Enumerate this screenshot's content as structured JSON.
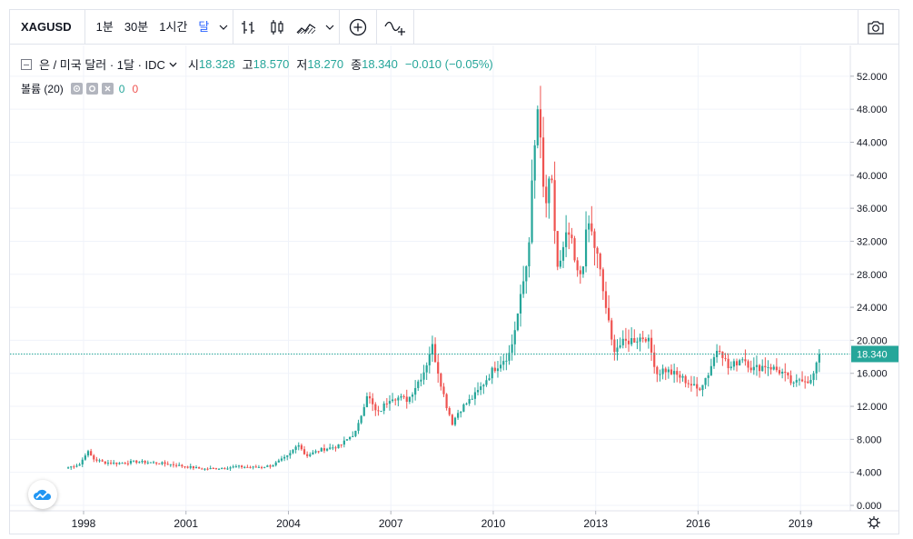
{
  "toolbar": {
    "symbol": "XAGUSD",
    "intervals": [
      {
        "label": "1분",
        "active": false
      },
      {
        "label": "30분",
        "active": false
      },
      {
        "label": "1시간",
        "active": false
      },
      {
        "label": "달",
        "active": true
      }
    ],
    "icons": [
      "chevron-down-icon",
      "bar-style-icon",
      "candle-style-icon",
      "area-style-icon",
      "chevron-down-icon",
      "plus-circle-icon",
      "compare-icon",
      "camera-icon"
    ]
  },
  "legend": {
    "title": "은 / 미국 달러 · 1달 · IDC",
    "open_label": "시",
    "open": "18.328",
    "high_label": "고",
    "high": "18.570",
    "low_label": "저",
    "low": "18.270",
    "close_label": "종",
    "close": "18.340",
    "change": "−0.010 (−0.05%)"
  },
  "volume": {
    "label": "볼륨 (20)",
    "v1": "0",
    "v2": "0"
  },
  "colors": {
    "up": "#26a69a",
    "down": "#ef5350",
    "grid": "#f0f3fa",
    "price_line": "#26a69a"
  },
  "chart_data": {
    "type": "candlestick",
    "symbol": "XAGUSD",
    "interval": "1 month",
    "x_ticks": [
      "1998",
      "2001",
      "2004",
      "2007",
      "2010",
      "2013",
      "2016",
      "2019"
    ],
    "y_ticks": [
      "52.000",
      "48.000",
      "44.000",
      "40.000",
      "36.000",
      "32.000",
      "28.000",
      "24.000",
      "20.000",
      "16.000",
      "12.000",
      "8.000",
      "4.000",
      "0.000"
    ],
    "ylim": [
      0,
      54
    ],
    "last_price": "18.340",
    "grid": true,
    "anchors": [
      [
        1997.55,
        4.6
      ],
      [
        1997.9,
        5.0
      ],
      [
        1998.1,
        6.6
      ],
      [
        1998.3,
        5.6
      ],
      [
        1998.6,
        5.2
      ],
      [
        1999.0,
        5.1
      ],
      [
        1999.5,
        5.3
      ],
      [
        2000.0,
        5.2
      ],
      [
        2000.5,
        5.0
      ],
      [
        2001.0,
        4.7
      ],
      [
        2001.5,
        4.4
      ],
      [
        2002.0,
        4.5
      ],
      [
        2002.5,
        4.7
      ],
      [
        2003.0,
        4.6
      ],
      [
        2003.5,
        4.8
      ],
      [
        2004.0,
        6.0
      ],
      [
        2004.3,
        7.5
      ],
      [
        2004.5,
        6.0
      ],
      [
        2005.0,
        6.8
      ],
      [
        2005.5,
        7.2
      ],
      [
        2006.0,
        9.0
      ],
      [
        2006.3,
        13.5
      ],
      [
        2006.6,
        11.0
      ],
      [
        2007.0,
        13.2
      ],
      [
        2007.5,
        12.8
      ],
      [
        2008.0,
        16.5
      ],
      [
        2008.2,
        19.5
      ],
      [
        2008.6,
        12.5
      ],
      [
        2008.8,
        10.0
      ],
      [
        2009.0,
        11.5
      ],
      [
        2009.5,
        13.5
      ],
      [
        2010.0,
        16.5
      ],
      [
        2010.5,
        18.5
      ],
      [
        2010.8,
        25.0
      ],
      [
        2011.0,
        30.0
      ],
      [
        2011.3,
        48.0
      ],
      [
        2011.5,
        36.0
      ],
      [
        2011.7,
        39.0
      ],
      [
        2011.9,
        28.0
      ],
      [
        2012.2,
        33.0
      ],
      [
        2012.5,
        27.0
      ],
      [
        2012.8,
        34.0
      ],
      [
        2013.0,
        31.0
      ],
      [
        2013.3,
        24.0
      ],
      [
        2013.5,
        19.0
      ],
      [
        2014.0,
        20.0
      ],
      [
        2014.5,
        20.5
      ],
      [
        2014.8,
        16.0
      ],
      [
        2015.0,
        16.5
      ],
      [
        2015.5,
        15.5
      ],
      [
        2016.0,
        14.0
      ],
      [
        2016.3,
        16.0
      ],
      [
        2016.6,
        19.5
      ],
      [
        2016.9,
        16.5
      ],
      [
        2017.3,
        18.0
      ],
      [
        2017.6,
        16.5
      ],
      [
        2018.0,
        17.0
      ],
      [
        2018.5,
        16.0
      ],
      [
        2018.8,
        14.5
      ],
      [
        2019.0,
        15.5
      ],
      [
        2019.3,
        15.0
      ],
      [
        2019.6,
        18.3
      ]
    ]
  }
}
